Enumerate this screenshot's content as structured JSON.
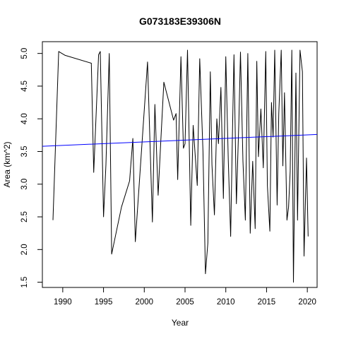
{
  "chart_data": {
    "type": "line",
    "title": "G073183E39306N",
    "xlabel": "Year",
    "ylabel": "Area (km^2)",
    "xlim": [
      1987.5,
      2021.2
    ],
    "ylim": [
      1.42,
      5.18
    ],
    "xticks": [
      1990,
      1995,
      2000,
      2005,
      2010,
      2015,
      2020
    ],
    "yticks": [
      1.5,
      2.0,
      2.5,
      3.0,
      3.5,
      4.0,
      4.5,
      5.0
    ],
    "grid": false,
    "series": [
      {
        "color": "#000000",
        "x": [
          1988.8,
          1989.5,
          1990.3,
          1993.5,
          1993.8,
          1994.4,
          1994.6,
          1995.0,
          1995.3,
          1995.7,
          1996.0,
          1997.2,
          1998.2,
          1998.6,
          1998.9,
          2000.4,
          2001.0,
          2001.3,
          2001.7,
          2002.0,
          2002.4,
          2003.6,
          2003.9,
          2004.1,
          2004.5,
          2004.8,
          2005.0,
          2005.3,
          2005.7,
          2006.0,
          2006.5,
          2006.8,
          2007.2,
          2007.5,
          2007.8,
          2008.1,
          2008.3,
          2008.6,
          2008.9,
          2009.1,
          2009.4,
          2009.7,
          2010.0,
          2010.3,
          2010.6,
          2010.8,
          2011.0,
          2011.3,
          2011.6,
          2011.8,
          2012.1,
          2012.4,
          2012.7,
          2013.0,
          2013.3,
          2013.6,
          2013.8,
          2014.0,
          2014.3,
          2014.6,
          2014.9,
          2015.1,
          2015.4,
          2015.6,
          2015.8,
          2016.0,
          2016.3,
          2016.5,
          2016.8,
          2017.0,
          2017.2,
          2017.5,
          2017.7,
          2017.9,
          2018.1,
          2018.3,
          2018.6,
          2018.8,
          2019.1,
          2019.4,
          2019.6,
          2019.9,
          2020.1
        ],
        "y": [
          2.45,
          5.03,
          4.97,
          4.85,
          3.18,
          4.98,
          5.03,
          2.5,
          3.3,
          5.0,
          1.93,
          2.65,
          3.05,
          3.7,
          2.12,
          4.87,
          2.42,
          4.22,
          2.83,
          3.6,
          4.56,
          3.98,
          4.08,
          3.07,
          4.95,
          3.55,
          3.62,
          5.05,
          2.37,
          3.9,
          2.98,
          4.92,
          3.5,
          1.63,
          2.1,
          4.72,
          3.3,
          2.53,
          4.0,
          3.62,
          4.48,
          2.78,
          4.95,
          3.38,
          2.2,
          3.7,
          4.98,
          2.7,
          3.95,
          5.02,
          3.35,
          2.45,
          5.0,
          2.25,
          3.35,
          2.32,
          4.88,
          3.42,
          4.15,
          3.25,
          5.03,
          2.98,
          2.28,
          4.25,
          3.72,
          5.05,
          2.68,
          4.07,
          5.05,
          3.28,
          4.4,
          2.45,
          2.65,
          3.2,
          5.05,
          1.5,
          4.7,
          2.45,
          5.05,
          4.72,
          1.9,
          3.4,
          2.2
        ]
      },
      {
        "color": "#0000ff",
        "x": [
          1987.5,
          2021.2
        ],
        "y": [
          3.58,
          3.76
        ]
      }
    ]
  }
}
